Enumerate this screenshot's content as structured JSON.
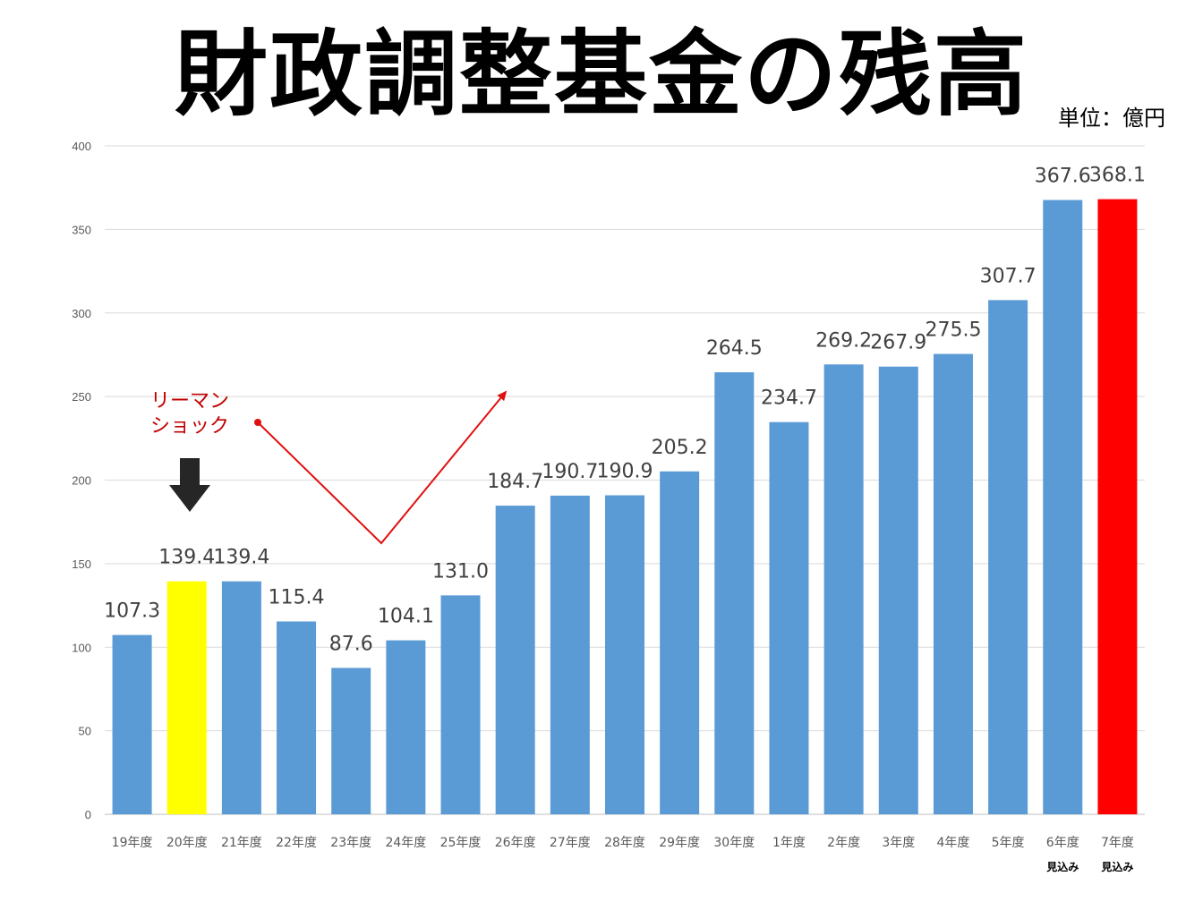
{
  "chart_data": {
    "type": "bar",
    "title": "財政調整基金の残高",
    "unit": "単位：億円",
    "xlabel": "",
    "ylabel": "",
    "ylim": [
      0,
      400
    ],
    "yticks": [
      0,
      50,
      100,
      150,
      200,
      250,
      300,
      350,
      400
    ],
    "grid": true,
    "legend": "none",
    "categories": [
      "19年度",
      "20年度",
      "21年度",
      "22年度",
      "23年度",
      "24年度",
      "25年度",
      "26年度",
      "27年度",
      "28年度",
      "29年度",
      "30年度",
      "1年度",
      "2年度",
      "3年度",
      "4年度",
      "5年度",
      "6年度",
      "7年度"
    ],
    "sublabels": [
      "",
      "",
      "",
      "",
      "",
      "",
      "",
      "",
      "",
      "",
      "",
      "",
      "",
      "",
      "",
      "",
      "",
      "見込み",
      "見込み"
    ],
    "values": [
      107.3,
      139.4,
      139.4,
      115.4,
      87.6,
      104.1,
      131.0,
      184.7,
      190.7,
      190.9,
      205.2,
      264.5,
      234.7,
      269.2,
      267.9,
      275.5,
      307.7,
      367.6,
      368.1
    ],
    "value_labels": [
      "107.3",
      "139.4",
      "139.4",
      "115.4",
      "87.6",
      "104.1",
      "131.0",
      "184.7",
      "190.7",
      "190.9",
      "205.2",
      "264.5",
      "234.7",
      "269.2",
      "267.9",
      "275.5",
      "307.7",
      "367.6",
      "368.1"
    ],
    "colors": {
      "default": "#5b9bd5",
      "highlight_yellow": "#ffff00",
      "highlight_red": "#ff0000",
      "annotation": "#e01010",
      "arrow_down": "#262626",
      "grid": "#d9d9d9"
    },
    "bar_colors": [
      "default",
      "highlight_yellow",
      "default",
      "default",
      "default",
      "default",
      "default",
      "default",
      "default",
      "default",
      "default",
      "default",
      "default",
      "default",
      "default",
      "default",
      "default",
      "default",
      "highlight_red"
    ],
    "annotation": {
      "lines": [
        "リーマン",
        "ショック"
      ]
    }
  }
}
